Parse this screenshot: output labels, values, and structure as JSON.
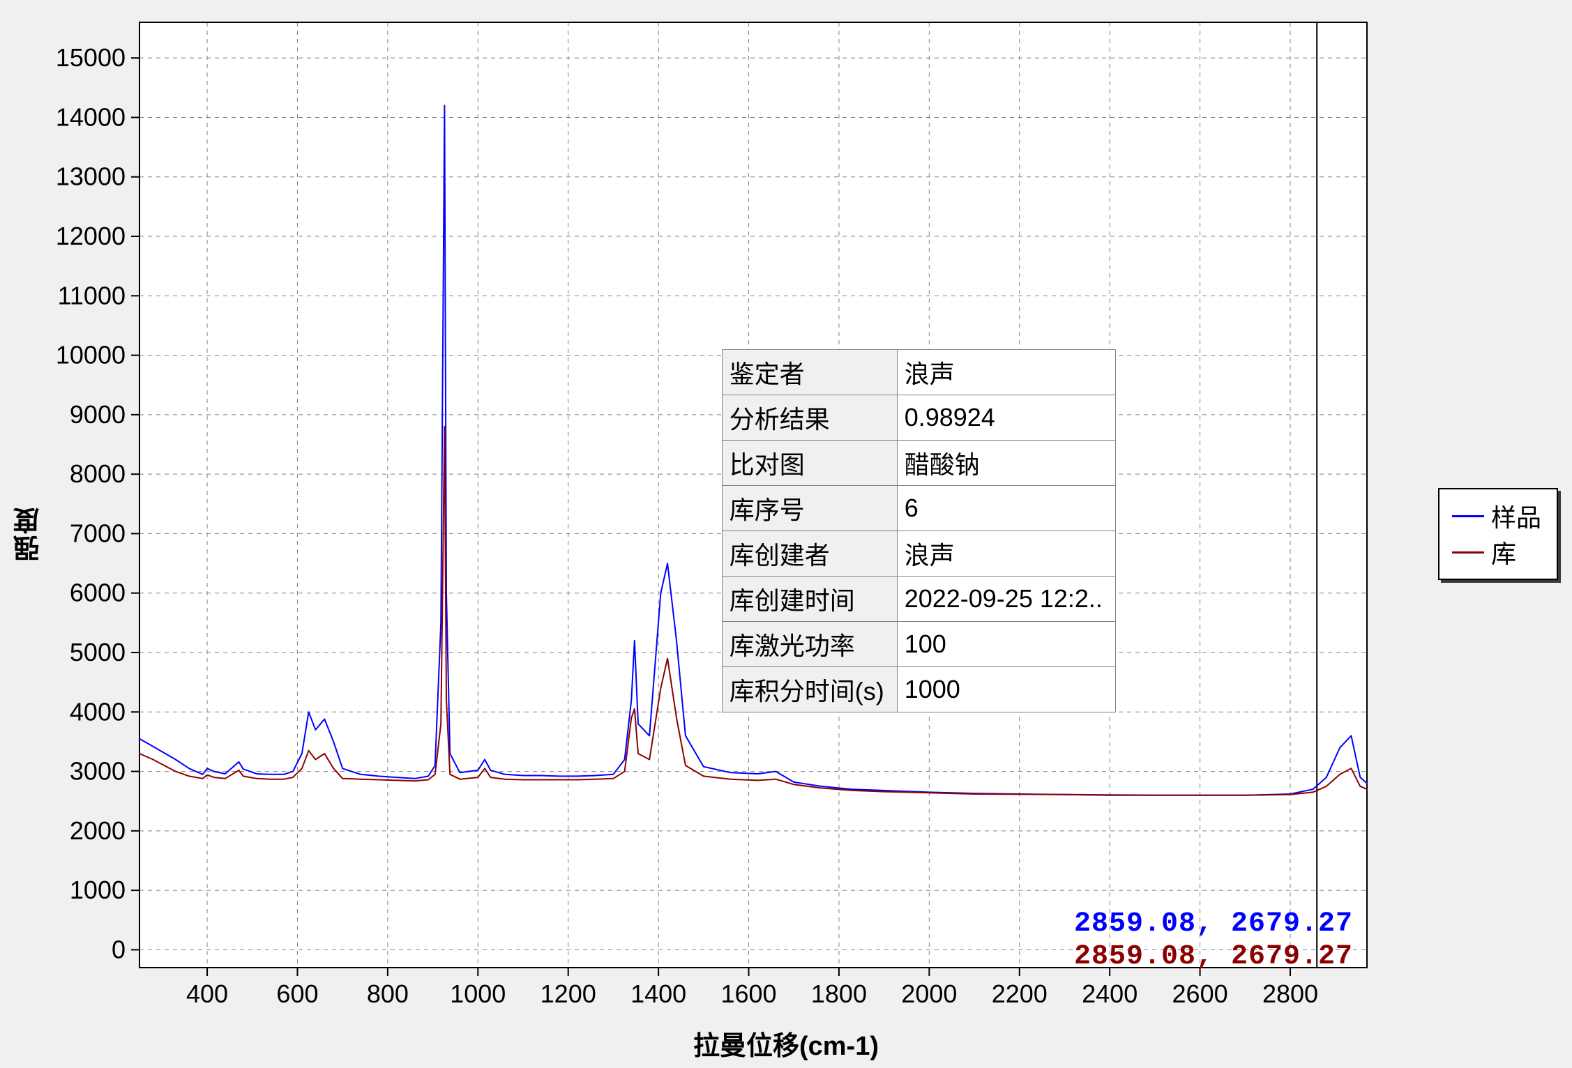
{
  "chart": {
    "type": "line",
    "background_color": "#f0f0f0",
    "plot_bg": "#ffffff",
    "plot_border_color": "#000000",
    "grid_color": "#808080",
    "grid_dash": "6,6",
    "x_label": "拉曼位移(cm-1)",
    "y_label": "强度",
    "label_fontsize": 38,
    "tick_fontsize": 36,
    "x_ticks": [
      400,
      600,
      800,
      1000,
      1200,
      1400,
      1600,
      1800,
      2000,
      2200,
      2400,
      2600,
      2800
    ],
    "y_ticks": [
      0,
      1000,
      2000,
      3000,
      4000,
      5000,
      6000,
      7000,
      8000,
      9000,
      10000,
      11000,
      12000,
      13000,
      14000,
      15000
    ],
    "xlim": [
      250,
      2970
    ],
    "ylim": [
      -300,
      15600
    ],
    "cursor_x": 2859.08,
    "series": [
      {
        "name": "样品",
        "color": "#0000ff",
        "width": 2,
        "points": [
          [
            250,
            3550
          ],
          [
            280,
            3420
          ],
          [
            330,
            3200
          ],
          [
            360,
            3050
          ],
          [
            390,
            2950
          ],
          [
            400,
            3050
          ],
          [
            415,
            3000
          ],
          [
            440,
            2960
          ],
          [
            470,
            3160
          ],
          [
            480,
            3040
          ],
          [
            510,
            2960
          ],
          [
            540,
            2950
          ],
          [
            570,
            2950
          ],
          [
            590,
            3000
          ],
          [
            610,
            3300
          ],
          [
            625,
            4000
          ],
          [
            640,
            3700
          ],
          [
            660,
            3880
          ],
          [
            680,
            3500
          ],
          [
            700,
            3050
          ],
          [
            740,
            2950
          ],
          [
            780,
            2920
          ],
          [
            820,
            2900
          ],
          [
            860,
            2880
          ],
          [
            890,
            2920
          ],
          [
            905,
            3100
          ],
          [
            918,
            5500
          ],
          [
            926,
            14200
          ],
          [
            930,
            6000
          ],
          [
            938,
            3300
          ],
          [
            960,
            2980
          ],
          [
            1000,
            3020
          ],
          [
            1015,
            3200
          ],
          [
            1028,
            3020
          ],
          [
            1060,
            2950
          ],
          [
            1100,
            2930
          ],
          [
            1140,
            2930
          ],
          [
            1180,
            2920
          ],
          [
            1220,
            2920
          ],
          [
            1260,
            2930
          ],
          [
            1300,
            2950
          ],
          [
            1325,
            3200
          ],
          [
            1340,
            4200
          ],
          [
            1347,
            5200
          ],
          [
            1355,
            3800
          ],
          [
            1380,
            3600
          ],
          [
            1405,
            6000
          ],
          [
            1420,
            6500
          ],
          [
            1440,
            5200
          ],
          [
            1460,
            3600
          ],
          [
            1500,
            3080
          ],
          [
            1560,
            2980
          ],
          [
            1620,
            2960
          ],
          [
            1660,
            3000
          ],
          [
            1700,
            2820
          ],
          [
            1760,
            2750
          ],
          [
            1830,
            2700
          ],
          [
            1900,
            2680
          ],
          [
            2000,
            2650
          ],
          [
            2100,
            2630
          ],
          [
            2200,
            2620
          ],
          [
            2300,
            2610
          ],
          [
            2400,
            2600
          ],
          [
            2500,
            2600
          ],
          [
            2600,
            2600
          ],
          [
            2700,
            2600
          ],
          [
            2800,
            2620
          ],
          [
            2850,
            2700
          ],
          [
            2880,
            2900
          ],
          [
            2910,
            3400
          ],
          [
            2935,
            3600
          ],
          [
            2955,
            2900
          ],
          [
            2970,
            2800
          ]
        ]
      },
      {
        "name": "库",
        "color": "#8b0000",
        "width": 2,
        "points": [
          [
            250,
            3300
          ],
          [
            280,
            3200
          ],
          [
            330,
            3000
          ],
          [
            360,
            2920
          ],
          [
            390,
            2880
          ],
          [
            400,
            2940
          ],
          [
            415,
            2900
          ],
          [
            440,
            2880
          ],
          [
            470,
            3020
          ],
          [
            480,
            2920
          ],
          [
            510,
            2880
          ],
          [
            540,
            2870
          ],
          [
            570,
            2870
          ],
          [
            590,
            2900
          ],
          [
            610,
            3050
          ],
          [
            625,
            3350
          ],
          [
            640,
            3200
          ],
          [
            660,
            3300
          ],
          [
            680,
            3050
          ],
          [
            700,
            2880
          ],
          [
            740,
            2870
          ],
          [
            780,
            2860
          ],
          [
            820,
            2850
          ],
          [
            860,
            2840
          ],
          [
            890,
            2860
          ],
          [
            905,
            2950
          ],
          [
            918,
            3800
          ],
          [
            926,
            8800
          ],
          [
            930,
            4200
          ],
          [
            938,
            2950
          ],
          [
            960,
            2870
          ],
          [
            1000,
            2900
          ],
          [
            1015,
            3050
          ],
          [
            1028,
            2900
          ],
          [
            1060,
            2870
          ],
          [
            1100,
            2860
          ],
          [
            1140,
            2860
          ],
          [
            1180,
            2860
          ],
          [
            1220,
            2860
          ],
          [
            1260,
            2870
          ],
          [
            1300,
            2880
          ],
          [
            1325,
            3000
          ],
          [
            1340,
            3900
          ],
          [
            1347,
            4050
          ],
          [
            1355,
            3300
          ],
          [
            1380,
            3200
          ],
          [
            1405,
            4400
          ],
          [
            1420,
            4900
          ],
          [
            1440,
            3900
          ],
          [
            1460,
            3100
          ],
          [
            1500,
            2920
          ],
          [
            1560,
            2870
          ],
          [
            1620,
            2850
          ],
          [
            1660,
            2870
          ],
          [
            1700,
            2780
          ],
          [
            1760,
            2720
          ],
          [
            1830,
            2680
          ],
          [
            1900,
            2660
          ],
          [
            2000,
            2640
          ],
          [
            2100,
            2620
          ],
          [
            2200,
            2615
          ],
          [
            2300,
            2610
          ],
          [
            2400,
            2605
          ],
          [
            2500,
            2600
          ],
          [
            2600,
            2600
          ],
          [
            2700,
            2600
          ],
          [
            2800,
            2610
          ],
          [
            2850,
            2650
          ],
          [
            2880,
            2750
          ],
          [
            2910,
            2950
          ],
          [
            2935,
            3050
          ],
          [
            2955,
            2750
          ],
          [
            2970,
            2700
          ]
        ]
      }
    ]
  },
  "legend": {
    "items": [
      {
        "label": "样品",
        "color": "#0000ff"
      },
      {
        "label": "库",
        "color": "#8b0000"
      }
    ]
  },
  "info_table": {
    "rows": [
      {
        "k": "鉴定者",
        "v": "浪声"
      },
      {
        "k": "分析结果",
        "v": "0.98924"
      },
      {
        "k": "比对图",
        "v": "醋酸钠"
      },
      {
        "k": "库序号",
        "v": "6"
      },
      {
        "k": "库创建者",
        "v": "浪声"
      },
      {
        "k": "库创建时间",
        "v": "2022-09-25 12:2.."
      },
      {
        "k": "库激光功率",
        "v": "100"
      },
      {
        "k": "库积分时间(s)",
        "v": "1000"
      }
    ]
  },
  "coords": {
    "sample": {
      "text": "2859.08, 2679.27",
      "color": "#0000ff"
    },
    "library": {
      "text": "2859.08, 2679.27",
      "color": "#8b0000"
    }
  }
}
